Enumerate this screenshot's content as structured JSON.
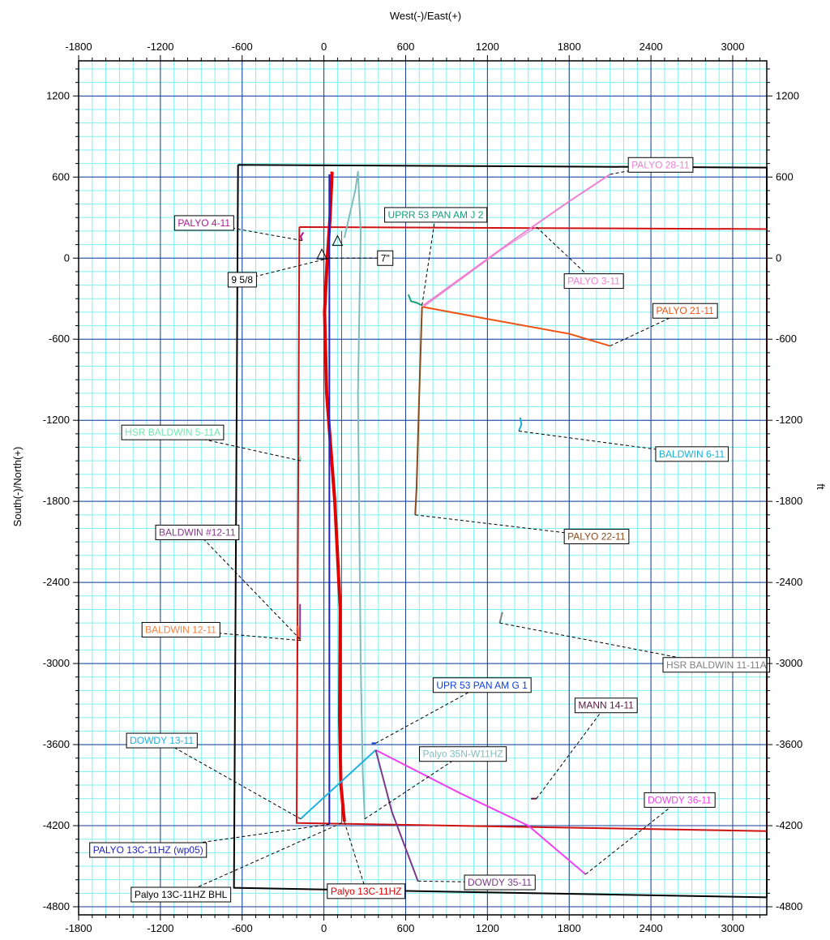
{
  "chart_data": {
    "type": "scatter",
    "title": "",
    "xlabel": "West(-)/East(+)",
    "ylabel": "South(-)/North(+)",
    "y2label": "ft",
    "xlim": [
      -1800,
      3250
    ],
    "ylim": [
      -4860,
      1460
    ],
    "x_ticks": [
      -1800,
      -1200,
      -600,
      0,
      600,
      1200,
      1800,
      2400,
      3000
    ],
    "y_ticks": [
      1200,
      600,
      0,
      -600,
      -1200,
      -1800,
      -2400,
      -3000,
      -3600,
      -4200,
      -4800
    ],
    "grid": true,
    "boundaries": [
      {
        "name": "section-outline",
        "color": "#000000",
        "points": [
          [
            -630,
            690
          ],
          [
            3250,
            670
          ],
          [
            3250,
            -4730
          ],
          [
            -660,
            -4660
          ],
          [
            -630,
            690
          ]
        ]
      },
      {
        "name": "lease-outline",
        "color": "#d11010",
        "points": [
          [
            -180,
            230
          ],
          [
            3250,
            215
          ],
          [
            3250,
            -4240
          ],
          [
            -200,
            -4180
          ],
          [
            -180,
            230
          ]
        ]
      }
    ],
    "wells": [
      {
        "name": "Palyo 13C-11HZ",
        "color": "#e00000",
        "width": 4,
        "label": "Palyo 13C-11HZ",
        "label_at": [
          310,
          -4685
        ],
        "points": [
          [
            60,
            640
          ],
          [
            45,
            300
          ],
          [
            25,
            0
          ],
          [
            5,
            -400
          ],
          [
            20,
            -1000
          ],
          [
            80,
            -1800
          ],
          [
            120,
            -2600
          ],
          [
            115,
            -3400
          ],
          [
            125,
            -3900
          ],
          [
            150,
            -4170
          ]
        ]
      },
      {
        "name": "PALYO 13C-11HZ (wp05)",
        "color": "#1e22c8",
        "width": 2,
        "label": "PALYO 13C-11HZ (wp05)",
        "label_at": [
          -1290,
          -4380
        ],
        "points": [
          [
            40,
            620
          ],
          [
            40,
            -4190
          ]
        ]
      },
      {
        "name": "Palyo 35N-W11HZ",
        "color": "#80bcbc",
        "width": 2,
        "label": "Palyo 35N-W11HZ",
        "label_at": [
          1020,
          -3670
        ],
        "points": [
          [
            150,
            150
          ],
          [
            230,
            500
          ],
          [
            250,
            640
          ],
          [
            270,
            200
          ],
          [
            250,
            -1000
          ],
          [
            260,
            -2000
          ],
          [
            270,
            -3000
          ],
          [
            285,
            -3800
          ],
          [
            300,
            -4150
          ]
        ]
      },
      {
        "name": "Palyo 13C-11HZ BHL",
        "color": "#000000",
        "width": 1,
        "label": "Palyo 13C-11HZ BHL",
        "label_at": [
          -1050,
          -4710
        ],
        "points": [
          [
            130,
            200
          ],
          [
            130,
            -4180
          ]
        ],
        "line_color": "#9a3a2a"
      },
      {
        "name": "UPRR 53 PAN AM J 2",
        "color": "#13a07a",
        "width": 2,
        "label": "UPRR 53 PAN AM J 2",
        "label_at": [
          820,
          320
        ],
        "points": [
          [
            620,
            -270
          ],
          [
            640,
            -320
          ],
          [
            680,
            -330
          ],
          [
            720,
            -350
          ]
        ]
      },
      {
        "name": "PALYO 28-11",
        "color": "#ef7fd0",
        "width": 2,
        "label": "PALYO 28-11",
        "label_at": [
          2470,
          690
        ],
        "points": [
          [
            730,
            -350
          ],
          [
            1400,
            140
          ],
          [
            1800,
            420
          ],
          [
            2100,
            620
          ]
        ]
      },
      {
        "name": "PALYO 3-11",
        "color": "#ef7fd0",
        "width": 1,
        "label": "PALYO 3-11",
        "label_at": [
          1980,
          -170
        ],
        "points": [
          [
            720,
            -370
          ],
          [
            1300,
            60
          ],
          [
            1560,
            230
          ]
        ]
      },
      {
        "name": "PALYO 21-11",
        "color": "#f05010",
        "width": 2,
        "label": "PALYO 21-11",
        "label_at": [
          2650,
          -390
        ],
        "points": [
          [
            720,
            -360
          ],
          [
            1200,
            -450
          ],
          [
            1800,
            -560
          ],
          [
            2100,
            -650
          ]
        ]
      },
      {
        "name": "PALYO 22-11",
        "color": "#8a4a1a",
        "width": 2,
        "label": "PALYO 22-11",
        "label_at": [
          2000,
          -2060
        ],
        "points": [
          [
            720,
            -360
          ],
          [
            700,
            -1000
          ],
          [
            680,
            -1700
          ],
          [
            670,
            -1900
          ]
        ]
      },
      {
        "name": "PALYO 4-11",
        "color": "#b01690",
        "width": 2,
        "label": "PALYO 4-11",
        "label_at": [
          -880,
          260
        ],
        "points": [
          [
            -150,
            190
          ],
          [
            -170,
            160
          ],
          [
            -160,
            130
          ]
        ]
      },
      {
        "name": "HSR BALDWIN 5-11A",
        "color": "#70e8b0",
        "width": 2,
        "label": "HSR BALDWIN 5-11A",
        "label_at": [
          -1110,
          -1290
        ],
        "points": [
          [
            -180,
            -1460
          ],
          [
            -170,
            -1500
          ]
        ]
      },
      {
        "name": "BALDWIN 6-11",
        "color": "#18b0d8",
        "width": 2,
        "label": "BALDWIN 6-11",
        "label_at": [
          2700,
          -1450
        ],
        "points": [
          [
            1440,
            -1180
          ],
          [
            1450,
            -1230
          ],
          [
            1430,
            -1280
          ]
        ]
      },
      {
        "name": "BALDWIN #12-11",
        "color": "#883890",
        "width": 2,
        "label": "BALDWIN #12-11",
        "label_at": [
          -930,
          -2030
        ],
        "points": [
          [
            -175,
            -2560
          ],
          [
            -175,
            -2820
          ]
        ]
      },
      {
        "name": "BALDWIN 12-11",
        "color": "#f58040",
        "width": 2,
        "label": "BALDWIN 12-11",
        "label_at": [
          -1050,
          -2750
        ],
        "points": [
          [
            -190,
            -2720
          ],
          [
            -185,
            -2810
          ],
          [
            -170,
            -2830
          ]
        ]
      },
      {
        "name": "HSR BALDWIN 11-11A",
        "color": "#808080",
        "width": 2,
        "label": "HSR BALDWIN 11-11A",
        "label_at": [
          2880,
          -3010
        ],
        "points": [
          [
            1310,
            -2620
          ],
          [
            1300,
            -2660
          ],
          [
            1290,
            -2700
          ]
        ]
      },
      {
        "name": "UPR 53 PAN AM G 1",
        "color": "#1040d8",
        "width": 2,
        "label": "UPR 53 PAN AM G 1",
        "label_at": [
          1160,
          -3160
        ],
        "points": [
          [
            350,
            -3590
          ],
          [
            380,
            -3590
          ]
        ]
      },
      {
        "name": "MANN 14-11",
        "color": "#5a1840",
        "width": 2,
        "label": "MANN 14-11",
        "label_at": [
          2070,
          -3310
        ],
        "points": [
          [
            1520,
            -4000
          ],
          [
            1560,
            -4000
          ]
        ]
      },
      {
        "name": "DOWDY 13-11",
        "color": "#20b0e0",
        "width": 2,
        "label": "DOWDY 13-11",
        "label_at": [
          -1190,
          -3570
        ],
        "points": [
          [
            380,
            -3640
          ],
          [
            -150,
            -4130
          ],
          [
            -170,
            -4150
          ]
        ]
      },
      {
        "name": "DOWDY 36-11",
        "color": "#ee40ee",
        "width": 2,
        "label": "DOWDY 36-11",
        "label_at": [
          2610,
          -4010
        ],
        "points": [
          [
            380,
            -3640
          ],
          [
            1000,
            -3960
          ],
          [
            1500,
            -4200
          ],
          [
            1920,
            -4560
          ]
        ]
      },
      {
        "name": "DOWDY 35-11",
        "color": "#7a3a88",
        "width": 2,
        "label": "DOWDY 35-11",
        "label_at": [
          1290,
          -4620
        ],
        "points": [
          [
            380,
            -3640
          ],
          [
            500,
            -4100
          ],
          [
            690,
            -4610
          ]
        ]
      }
    ],
    "casing_labels": [
      {
        "text": "9 5/8",
        "at": [
          -600,
          -160
        ]
      },
      {
        "text": "7\"",
        "at": [
          450,
          0
        ]
      }
    ]
  }
}
